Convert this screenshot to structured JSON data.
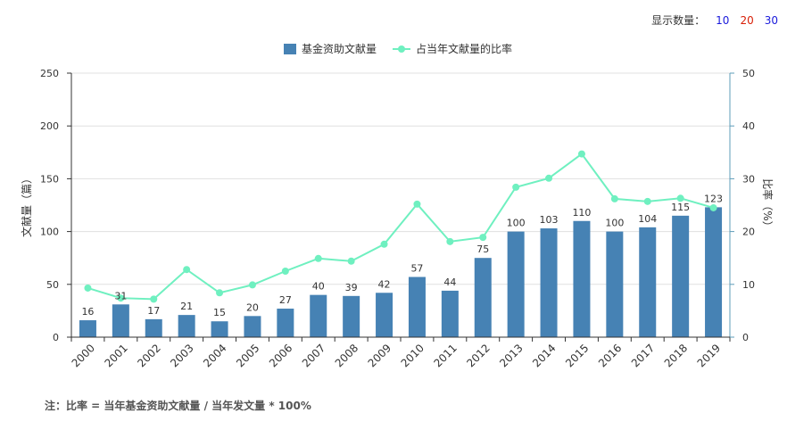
{
  "controls": {
    "display_count_label": "显示数量：",
    "options": [
      {
        "label": "10",
        "color": "#1a1adb"
      },
      {
        "label": "20",
        "color": "#d81e06"
      },
      {
        "label": "30",
        "color": "#1a1adb"
      }
    ]
  },
  "note": "注：比率 = 当年基金资助文献量 / 当年发文量 * 100%",
  "colors": {
    "bar": "#4682b4",
    "line": "#6ff0c0",
    "axis": "#333333",
    "right_axis": "#5d9cb8",
    "grid": "#e0e0e0"
  },
  "chart_data": {
    "type": "bar",
    "categories": [
      "2000",
      "2001",
      "2002",
      "2003",
      "2004",
      "2005",
      "2006",
      "2007",
      "2008",
      "2009",
      "2010",
      "2011",
      "2012",
      "2013",
      "2014",
      "2015",
      "2016",
      "2017",
      "2018",
      "2019"
    ],
    "series": [
      {
        "name": "基金资助文献量",
        "type": "bar",
        "axis": "left",
        "values": [
          16,
          31,
          17,
          21,
          15,
          20,
          27,
          40,
          39,
          42,
          57,
          44,
          75,
          100,
          103,
          110,
          100,
          104,
          115,
          123
        ]
      },
      {
        "name": "占当年文献量的比率",
        "type": "line",
        "axis": "right",
        "values": [
          9.3,
          7.4,
          7.2,
          12.8,
          8.4,
          9.9,
          12.5,
          14.9,
          14.4,
          17.6,
          25.2,
          18.1,
          18.9,
          28.4,
          30.1,
          34.7,
          26.2,
          25.7,
          26.3,
          24.5
        ]
      }
    ],
    "ylabel": "文献量（篇）",
    "ylabel_right": "比率（%）",
    "ylim": [
      0,
      250
    ],
    "yticks": [
      0,
      50,
      100,
      150,
      200,
      250
    ],
    "ylim_right": [
      0,
      50
    ],
    "yticks_right": [
      0,
      10,
      20,
      30,
      40,
      50
    ],
    "legend_position": "top-center",
    "grid": true
  }
}
